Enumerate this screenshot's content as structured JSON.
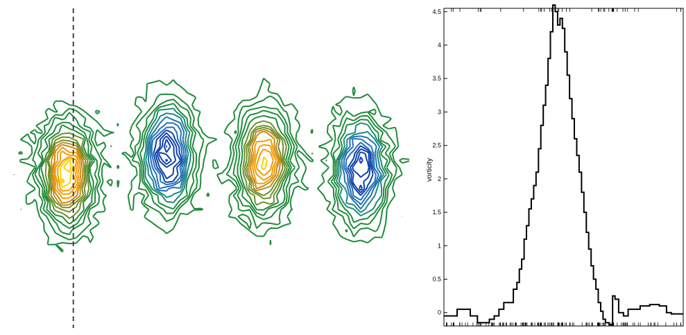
{
  "chart_data": [
    {
      "type": "contour",
      "grid": false,
      "colormap": [
        "#1f8a3a",
        "#2d7fb8",
        "#0b3fa8",
        "#d99a1a",
        "#f7a500",
        "#ffd400"
      ],
      "vortices": [
        {
          "x": 0.15,
          "y": 0.52,
          "amplitude": 4.6
        },
        {
          "x": 0.4,
          "y": 0.46,
          "amplitude": -4.2
        },
        {
          "x": 0.64,
          "y": 0.48,
          "amplitude": 4.4
        },
        {
          "x": 0.88,
          "y": 0.51,
          "amplitude": -4.0
        }
      ],
      "slice_x": 0.165
    },
    {
      "type": "line",
      "ylabel": "vorticity",
      "ylim": [
        -0.2,
        4.55
      ],
      "xlim": [
        0,
        100
      ],
      "yticks": [
        "0",
        "0.5",
        "1",
        "1.5",
        "2",
        "2.5",
        "3",
        "3.5",
        "4",
        "4.5"
      ],
      "ytick_values": [
        0,
        0.5,
        1,
        1.5,
        2,
        2.5,
        3,
        3.5,
        4,
        4.5
      ],
      "color": "#000000",
      "x": [
        0,
        5,
        6,
        10,
        12,
        16,
        18,
        20,
        22,
        24,
        26,
        28,
        30,
        31,
        32,
        33,
        34,
        35,
        36,
        37,
        38,
        39,
        40,
        41,
        42,
        43,
        44,
        45,
        46,
        47,
        48,
        49,
        50,
        51,
        52,
        53,
        54,
        55,
        56,
        57,
        58,
        59,
        60,
        61,
        62,
        63,
        64,
        65,
        66,
        67,
        68,
        70,
        71,
        72,
        74,
        76,
        78,
        80,
        84,
        88,
        92,
        94,
        96,
        100
      ],
      "y": [
        -0.05,
        -0.05,
        0.05,
        0.05,
        -0.05,
        -0.15,
        -0.15,
        -0.1,
        -0.05,
        0.05,
        0.15,
        0.15,
        0.35,
        0.45,
        0.65,
        0.8,
        1.1,
        1.3,
        1.55,
        1.7,
        1.9,
        2.1,
        2.45,
        2.8,
        3.1,
        3.4,
        3.8,
        4.2,
        4.6,
        4.5,
        4.3,
        4.4,
        4.25,
        3.9,
        3.55,
        3.2,
        2.9,
        2.6,
        2.35,
        2.1,
        1.8,
        1.5,
        1.2,
        0.95,
        0.7,
        0.5,
        0.35,
        0.15,
        0.02,
        -0.1,
        -0.15,
        -0.18,
        0.25,
        0.2,
        0.0,
        -0.05,
        0.05,
        0.05,
        0.1,
        0.12,
        0.1,
        0.0,
        -0.02,
        -0.02
      ]
    }
  ]
}
